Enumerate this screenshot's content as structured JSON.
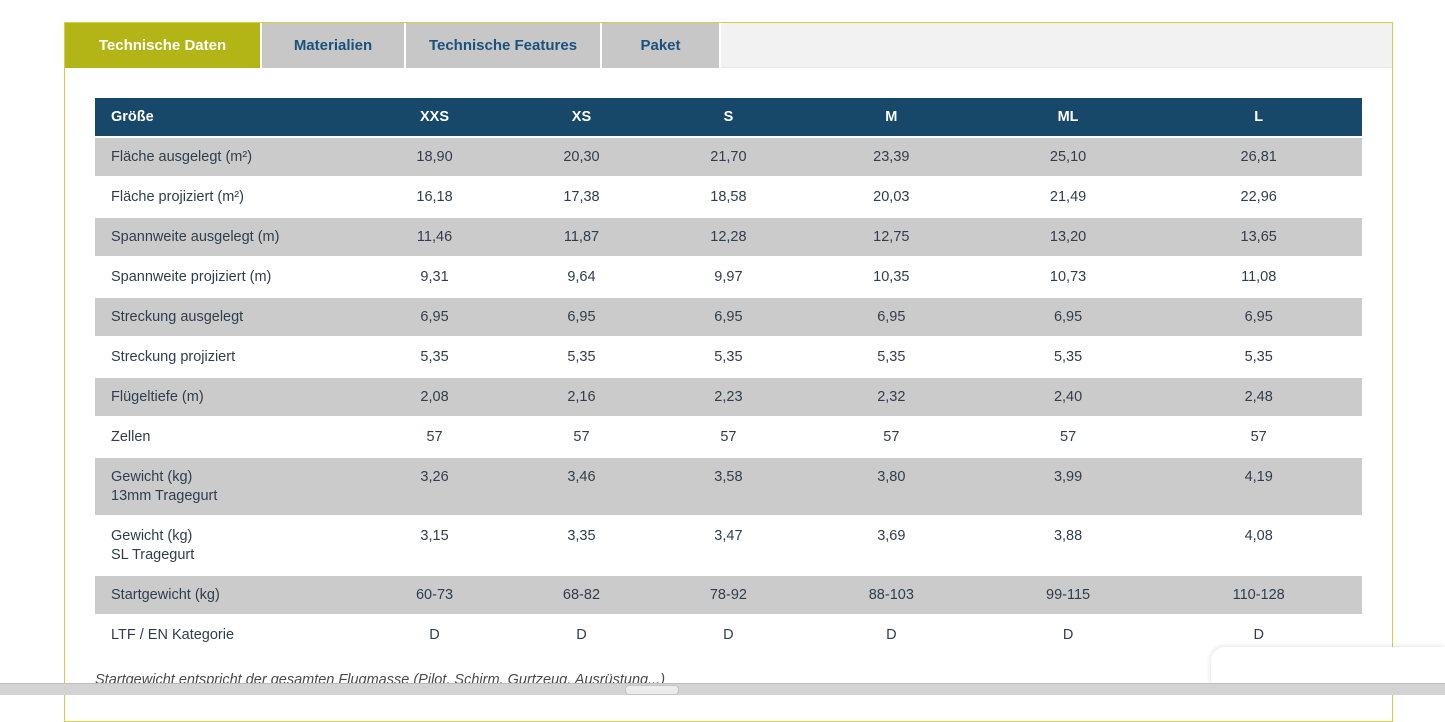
{
  "tabs": [
    {
      "label": "Technische Daten",
      "active": true
    },
    {
      "label": "Materialien",
      "active": false
    },
    {
      "label": "Technische Features",
      "active": false
    },
    {
      "label": "Paket",
      "active": false
    }
  ],
  "table": {
    "header": [
      "Größe",
      "XXS",
      "XS",
      "S",
      "M",
      "ML",
      "L"
    ],
    "rows": [
      {
        "label": "Fläche ausgelegt (m²)",
        "label2": "",
        "values": [
          "18,90",
          "20,30",
          "21,70",
          "23,39",
          "25,10",
          "26,81"
        ]
      },
      {
        "label": "Fläche projiziert (m²)",
        "label2": "",
        "values": [
          "16,18",
          "17,38",
          "18,58",
          "20,03",
          "21,49",
          "22,96"
        ]
      },
      {
        "label": "Spannweite ausgelegt (m)",
        "label2": "",
        "values": [
          "11,46",
          "11,87",
          "12,28",
          "12,75",
          "13,20",
          "13,65"
        ]
      },
      {
        "label": "Spannweite projiziert (m)",
        "label2": "",
        "values": [
          "9,31",
          "9,64",
          "9,97",
          "10,35",
          "10,73",
          "11,08"
        ]
      },
      {
        "label": "Streckung ausgelegt",
        "label2": "",
        "values": [
          "6,95",
          "6,95",
          "6,95",
          "6,95",
          "6,95",
          "6,95"
        ]
      },
      {
        "label": "Streckung projiziert",
        "label2": "",
        "values": [
          "5,35",
          "5,35",
          "5,35",
          "5,35",
          "5,35",
          "5,35"
        ]
      },
      {
        "label": "Flügeltiefe (m)",
        "label2": "",
        "values": [
          "2,08",
          "2,16",
          "2,23",
          "2,32",
          "2,40",
          "2,48"
        ]
      },
      {
        "label": "Zellen",
        "label2": "",
        "values": [
          "57",
          "57",
          "57",
          "57",
          "57",
          "57"
        ]
      },
      {
        "label": "Gewicht (kg)",
        "label2": "13mm Tragegurt",
        "values": [
          "3,26",
          "3,46",
          "3,58",
          "3,80",
          "3,99",
          "4,19"
        ]
      },
      {
        "label": "Gewicht (kg)",
        "label2": "SL Tragegurt",
        "values": [
          "3,15",
          "3,35",
          "3,47",
          "3,69",
          "3,88",
          "4,08"
        ]
      },
      {
        "label": "Startgewicht (kg)",
        "label2": "",
        "values": [
          "60-73",
          "68-82",
          "78-92",
          "88-103",
          "99-115",
          "110-128"
        ]
      },
      {
        "label": "LTF / EN Kategorie",
        "label2": "",
        "values": [
          "D",
          "D",
          "D",
          "D",
          "D",
          "D"
        ]
      }
    ]
  },
  "footnote": "Startgewicht entspricht der gesamten Flugmasse (Pilot, Schirm, Gurtzeug, Ausrüstung...)",
  "colors": {
    "active_tab": "#b3b416",
    "inactive_tab": "#c7c7c7",
    "tab_text": "#1a527d",
    "card_border": "#d5cf45",
    "table_header": "#17486a",
    "row_gray": "#cbcbcb",
    "table_text": "#2f3e4e"
  }
}
